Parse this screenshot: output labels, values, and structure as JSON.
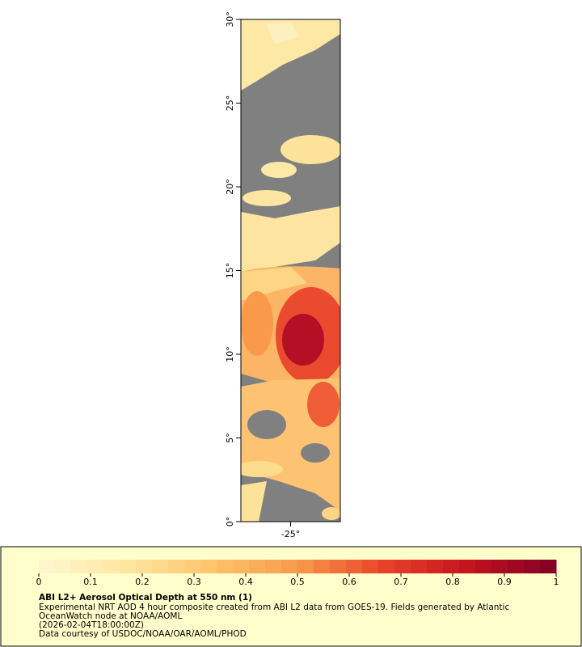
{
  "chart_data": {
    "type": "map",
    "title": "ABI L2+ Aerosol Optical Depth at 550 nm (1)",
    "description": [
      "Experimental NRT AOD 4 hour composite created from ABI L2 data from GOES-19. Fields generated by Atlantic",
      "OceanWatch node at NOAA/AOML",
      "(2026-02-04T18:00:00Z)",
      "Data courtesy of USDOC/NOAA/OAR/AOML/PHOD"
    ],
    "xlim": [
      -28,
      -22
    ],
    "xticks": [
      {
        "value": -25,
        "label": "-25°"
      }
    ],
    "ylim": [
      0,
      30
    ],
    "yticks": [
      {
        "value": 0,
        "label": "0°"
      },
      {
        "value": 5,
        "label": "5°"
      },
      {
        "value": 10,
        "label": "10°"
      },
      {
        "value": 15,
        "label": "15°"
      },
      {
        "value": 20,
        "label": "20°"
      },
      {
        "value": 25,
        "label": "25°"
      },
      {
        "value": 30,
        "label": "30°"
      }
    ],
    "colorbar": {
      "lim": [
        0,
        1
      ],
      "ticks": [
        0,
        0.1,
        0.2,
        0.3,
        0.4,
        0.5,
        0.6,
        0.7,
        0.8,
        0.9,
        1
      ],
      "colors": [
        "#fff6d0",
        "#fee7a2",
        "#fdc46c",
        "#f89a4c",
        "#e9422a",
        "#c2121f",
        "#7f0026"
      ]
    }
  }
}
